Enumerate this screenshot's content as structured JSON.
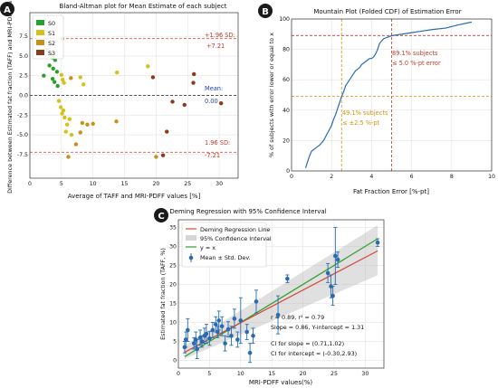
{
  "panels": {
    "A": {
      "badge": "A"
    },
    "B": {
      "badge": "B"
    },
    "C": {
      "badge": "C"
    }
  },
  "chart_data": [
    {
      "id": "A",
      "type": "scatter",
      "title": "Bland-Altman plot for Mean Estimate of each subject",
      "xlabel": "Average of TAFF and MRI-PDFF values [%]",
      "ylabel": "Difference between Estimated fat fraction (TAFF) and MRI-PDFF [%]",
      "xlim": [
        0,
        33
      ],
      "ylim": [
        -10.5,
        10.5
      ],
      "xticks": [
        0,
        5,
        10,
        15,
        20,
        25,
        30
      ],
      "yticks": [
        -7.5,
        -5.0,
        -2.5,
        0.0,
        2.5,
        5.0,
        7.5
      ],
      "grid": true,
      "legend_position": "top-left",
      "series": [
        {
          "name": "S0",
          "color": "#2ca02c",
          "points": [
            [
              2.0,
              6.5
            ],
            [
              2.8,
              5.8
            ],
            [
              3.4,
              5.3
            ],
            [
              3.6,
              4.8
            ],
            [
              4.0,
              4.5
            ],
            [
              3.1,
              3.8
            ],
            [
              3.7,
              3.4
            ],
            [
              4.3,
              3.0
            ],
            [
              2.2,
              2.5
            ],
            [
              3.6,
              2.1
            ],
            [
              3.9,
              1.7
            ],
            [
              4.4,
              1.2
            ],
            [
              5.1,
              7.2
            ]
          ]
        },
        {
          "name": "S1",
          "color": "#d4c11a",
          "points": [
            [
              5.0,
              2.6
            ],
            [
              5.2,
              2.0
            ],
            [
              5.4,
              1.6
            ],
            [
              4.6,
              -0.7
            ],
            [
              4.9,
              -1.5
            ],
            [
              5.3,
              -1.9
            ],
            [
              5.1,
              -2.3
            ],
            [
              5.5,
              -2.8
            ],
            [
              6.3,
              -3.0
            ],
            [
              5.9,
              -3.7
            ],
            [
              5.7,
              -4.6
            ],
            [
              6.6,
              -5.0
            ],
            [
              8.0,
              2.3
            ],
            [
              8.5,
              1.4
            ],
            [
              13.8,
              2.9
            ],
            [
              18.7,
              3.7
            ]
          ]
        },
        {
          "name": "S2",
          "color": "#c8901b",
          "points": [
            [
              6.5,
              2.2
            ],
            [
              8.3,
              -3.5
            ],
            [
              9.1,
              -3.7
            ],
            [
              10.0,
              -3.6
            ],
            [
              13.7,
              -3.3
            ],
            [
              8.0,
              -4.7
            ],
            [
              7.3,
              -6.2
            ],
            [
              6.1,
              -7.8
            ],
            [
              20.0,
              -7.8
            ]
          ]
        },
        {
          "name": "S3",
          "color": "#8b3a1d",
          "points": [
            [
              19.5,
              2.3
            ],
            [
              26.0,
              2.7
            ],
            [
              25.9,
              1.6
            ],
            [
              24.5,
              -1.2
            ],
            [
              30.3,
              -1.0
            ],
            [
              22.6,
              -0.8
            ],
            [
              21.7,
              -4.6
            ],
            [
              21.1,
              -7.6
            ]
          ]
        }
      ],
      "lines": {
        "upper_loa": 7.21,
        "mean": 0.0,
        "lower_loa": -7.21
      },
      "annotations": {
        "upper_label": "+1.96 SD:",
        "upper_value": "+7.21",
        "mean_label": "Mean:",
        "mean_value": "0.00",
        "lower_label": "1.96 SD:",
        "lower_value": "-7.21"
      }
    },
    {
      "id": "B",
      "type": "line",
      "title": "Mountain Plot (Folded CDF) of Estimation Error",
      "xlabel": "Fat Fraction Error [%-pt]",
      "ylabel": "% of subjects with error lower or equal to x",
      "xlim": [
        0,
        10
      ],
      "ylim": [
        0,
        100
      ],
      "xticks": [
        0,
        2,
        4,
        6,
        8,
        10
      ],
      "yticks": [
        0,
        20,
        40,
        60,
        80,
        100
      ],
      "grid": true,
      "color": "#2a6bb0",
      "x": [
        0.7,
        0.9,
        1.0,
        1.2,
        1.4,
        1.6,
        1.8,
        2.0,
        2.1,
        2.2,
        2.3,
        2.4,
        2.5,
        2.6,
        2.7,
        2.8,
        2.9,
        3.0,
        3.1,
        3.2,
        3.3,
        3.4,
        3.5,
        3.6,
        3.7,
        3.8,
        3.9,
        4.0,
        4.1,
        4.2,
        4.3,
        4.4,
        4.6,
        5.0,
        6.0,
        6.5,
        7.0,
        7.7,
        8.3,
        9.0
      ],
      "y": [
        2,
        10,
        13,
        15,
        17,
        20,
        25,
        30,
        34,
        37,
        41,
        45,
        49,
        52,
        56,
        58,
        60,
        62,
        64,
        66,
        67,
        68,
        70,
        71,
        72,
        73,
        74,
        74,
        75,
        77,
        80,
        84,
        87,
        89,
        91,
        92,
        93,
        94,
        96,
        98
      ],
      "reference_lines": {
        "error_5": 5.0,
        "pct_89": 89.1,
        "error_2_5": 2.5,
        "pct_49": 49.1
      },
      "annotations": {
        "upper_line1": "89.1% subjects",
        "upper_line2": "≤ 5.0 %-pt error",
        "lower_line1": "49.1% subjects",
        "lower_line2": "≤ ±2.5 %-pt"
      }
    },
    {
      "id": "C",
      "type": "scatter",
      "title": "Deming Regression with 95% Confidence Interval",
      "xlabel": "MRI-PDFF values(%)",
      "ylabel": "Estimated fat fraction (TAFF, %)",
      "xlim": [
        0,
        33
      ],
      "ylim": [
        -2,
        37
      ],
      "xticks": [
        0,
        5,
        10,
        15,
        20,
        25,
        30
      ],
      "yticks": [
        0,
        5,
        10,
        15,
        20,
        25,
        30,
        35
      ],
      "grid": true,
      "legend_position": "top-left",
      "legend": {
        "regression": "Deming Regression Line",
        "ci": "95% Confidence Interval",
        "identity": "y = x",
        "points": "Mean ± Std. Dev."
      },
      "regression": {
        "slope": 0.86,
        "intercept": 1.31,
        "ci_low_slope": 0.71,
        "ci_high_slope": 1.02,
        "ci_low_int": -0.3,
        "ci_high_int": 2.93
      },
      "colors": {
        "points": "#2a6bb0",
        "regression": "#d6453a",
        "identity": "#2ca02c",
        "ci": "#bbbbbb"
      },
      "points": [
        [
          1.0,
          3.5,
          1.5
        ],
        [
          1.2,
          5.5,
          2.0
        ],
        [
          1.5,
          8.0,
          3.0
        ],
        [
          2.5,
          4.5,
          1.5
        ],
        [
          2.8,
          5.5,
          2.0
        ],
        [
          3.0,
          3.0,
          2.5
        ],
        [
          3.5,
          6.0,
          2.0
        ],
        [
          3.8,
          5.0,
          1.5
        ],
        [
          4.2,
          6.5,
          2.0
        ],
        [
          4.5,
          7.0,
          2.5
        ],
        [
          5.0,
          5.8,
          1.8
        ],
        [
          5.5,
          8.0,
          2.0
        ],
        [
          6.0,
          9.5,
          2.0
        ],
        [
          6.3,
          7.5,
          1.5
        ],
        [
          6.5,
          10.5,
          2.5
        ],
        [
          7.0,
          9.0,
          2.5
        ],
        [
          7.5,
          4.5,
          2.0
        ],
        [
          8.0,
          8.2,
          2.0
        ],
        [
          8.5,
          6.5,
          2.5
        ],
        [
          9.0,
          11.0,
          2.5
        ],
        [
          9.5,
          5.5,
          2.0
        ],
        [
          10.0,
          10.5,
          6.0
        ],
        [
          11.0,
          7.5,
          2.0
        ],
        [
          11.5,
          2.0,
          2.5
        ],
        [
          12.0,
          6.5,
          2.0
        ],
        [
          12.5,
          15.5,
          3.0
        ],
        [
          16.0,
          12.0,
          5.0
        ],
        [
          17.5,
          21.5,
          1.0
        ],
        [
          24.0,
          23.0,
          2.5
        ],
        [
          24.5,
          19.5,
          3.0
        ],
        [
          24.8,
          17.0,
          2.5
        ],
        [
          25.2,
          27.5,
          7.5
        ],
        [
          25.6,
          26.5,
          2.0
        ],
        [
          32.0,
          31.0,
          1.0
        ]
      ],
      "stats": {
        "line1": "r = 0.89, r² = 0.79",
        "line2": "Slope = 0.86, Y-intercept = 1.31",
        "line3": "CI for slope = (0.71,1.02)",
        "line4": "CI for intercept = (-0.30,2.93)"
      }
    }
  ]
}
